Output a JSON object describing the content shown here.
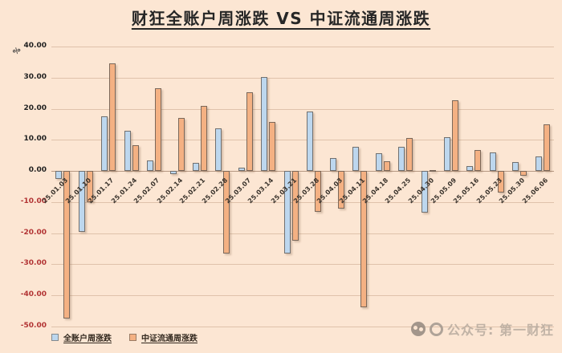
{
  "title": "财狂全账户周涨跌 VS 中证流通周涨跌",
  "watermark": {
    "text": "公众号: 第一财狂",
    "icons": [
      "wechat-icon",
      "app-logo-icon"
    ]
  },
  "colors": {
    "background": "#fce6d3",
    "account_bar": "#bdd7ee",
    "csi_bar": "#f4b183",
    "negative_tick": "#b23333",
    "positive_tick": "#1f1f1f"
  },
  "chart_data": {
    "type": "bar",
    "title": "财狂全账户周涨跌 VS 中证流通周涨跌",
    "xlabel": "",
    "ylabel": "%",
    "ylim": [
      -50,
      40
    ],
    "ytick_step": 10,
    "yticks": [
      "40.00",
      "30.00",
      "20.00",
      "10.00",
      "0.00",
      "-10.00",
      "-20.00",
      "-30.00",
      "-40.00",
      "-50.00"
    ],
    "grid": true,
    "legend_position": "bottom-left",
    "categories": [
      "25.01.03",
      "25.01.10",
      "25.01.17",
      "25.01.24",
      "25.02.07",
      "25.02.14",
      "25.02.21",
      "25.02.28",
      "25.03.07",
      "25.03.14",
      "25.03.21",
      "25.03.28",
      "25.04.03",
      "25.04.11",
      "25.04.18",
      "25.04.25",
      "25.04.30",
      "25.05.09",
      "25.05.16",
      "25.05.23",
      "25.05.30",
      "25.06.06"
    ],
    "series": [
      {
        "key": "account",
        "name": "全账户周涨跌",
        "color": "#bdd7ee",
        "values": [
          -2.5,
          -19.5,
          17.5,
          13.0,
          3.3,
          -1.0,
          2.5,
          13.8,
          1.0,
          30.3,
          -26.5,
          19.0,
          4.2,
          7.8,
          5.6,
          7.8,
          -13.3,
          10.8,
          1.7,
          5.9,
          2.8,
          4.7
        ]
      },
      {
        "key": "csi",
        "name": "中证流通周涨跌",
        "color": "#f4b183",
        "values": [
          -47.5,
          -10.0,
          34.5,
          8.3,
          26.5,
          17.0,
          21.0,
          -26.5,
          25.3,
          15.8,
          -22.5,
          -13.2,
          -12.2,
          -43.8,
          3.2,
          10.6,
          0.3,
          22.7,
          6.8,
          -7.0,
          -1.6,
          14.9
        ]
      }
    ]
  }
}
